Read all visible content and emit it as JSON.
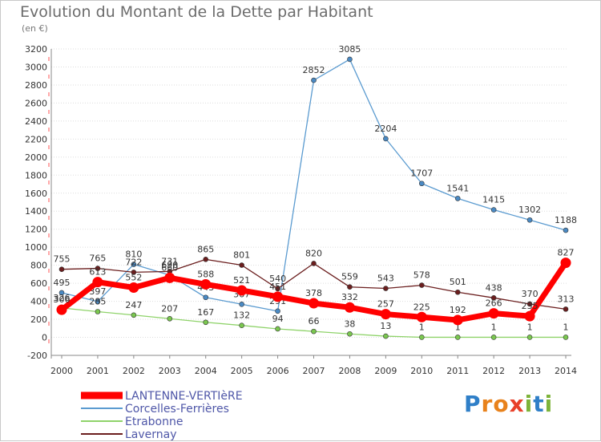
{
  "title": "Evolution du Montant de la Dette par Habitant",
  "subtitle": "(en €)",
  "logo": {
    "text": "Proxiti",
    "letters": [
      "P",
      "r",
      "o",
      "x",
      "i",
      "t",
      "i"
    ],
    "colors": [
      "#2f7fc8",
      "#e8821c",
      "#e8821c",
      "#e8402a",
      "#7db33a",
      "#2f7fc8",
      "#7db33a"
    ]
  },
  "chart_data": {
    "type": "line",
    "x": [
      "2000",
      "2001",
      "2002",
      "2003",
      "2004",
      "2005",
      "2006",
      "2007",
      "2008",
      "2009",
      "2010",
      "2011",
      "2012",
      "2013",
      "2014"
    ],
    "ylim": [
      -200,
      3200
    ],
    "yticks": [
      -200,
      0,
      200,
      400,
      600,
      800,
      1000,
      1200,
      1400,
      1600,
      1800,
      2000,
      2200,
      2400,
      2600,
      2800,
      3000,
      3200
    ],
    "grid": true,
    "legend_position": "bottom-left",
    "series": [
      {
        "name": "Corcelles-Ferrières",
        "color": "#5b9bd0",
        "marker": "#4a8ac4",
        "values": [
          495,
          397,
          810,
          690,
          443,
          367,
          291,
          2852,
          3085,
          2204,
          1707,
          1541,
          1415,
          1302,
          1188
        ],
        "labels": [
          "495",
          "397",
          "810",
          "690",
          "443",
          "367",
          "291",
          "2852",
          "3085",
          "2204",
          "1707",
          "1541",
          "1415",
          "1302",
          "1188"
        ]
      },
      {
        "name": "Etrabonne",
        "color": "#8fd36a",
        "marker": "#7ac74f",
        "values": [
          326,
          285,
          247,
          207,
          167,
          132,
          94,
          66,
          38,
          13,
          1,
          1,
          1,
          1,
          1
        ],
        "labels": [
          "326",
          "285",
          "247",
          "207",
          "167",
          "132",
          "94",
          "66",
          "38",
          "13",
          "1",
          "1",
          "1",
          "1",
          "1"
        ]
      },
      {
        "name": "Lavernay",
        "color": "#6b1e1e",
        "marker": "#6b1e1e",
        "values": [
          755,
          765,
          722,
          731,
          865,
          801,
          540,
          820,
          559,
          543,
          578,
          501,
          438,
          370,
          313
        ],
        "labels": [
          "755",
          "765",
          "722",
          "731",
          "865",
          "801",
          "540",
          "820",
          "559",
          "543",
          "578",
          "501",
          "438",
          "370",
          "313"
        ]
      },
      {
        "name": "LANTENNE-VERTIèRE",
        "color": "#ff0000",
        "marker": "#ff0000",
        "thick": true,
        "values": [
          306,
          613,
          552,
          660,
          588,
          521,
          451,
          378,
          332,
          257,
          225,
          192,
          266,
          235,
          827
        ],
        "labels": [
          "306",
          "613",
          "552",
          "660",
          "588",
          "521",
          "451",
          "378",
          "332",
          "257",
          "225",
          "192",
          "266",
          "235",
          "827"
        ]
      }
    ]
  },
  "legend_order": [
    3,
    0,
    1,
    2
  ]
}
